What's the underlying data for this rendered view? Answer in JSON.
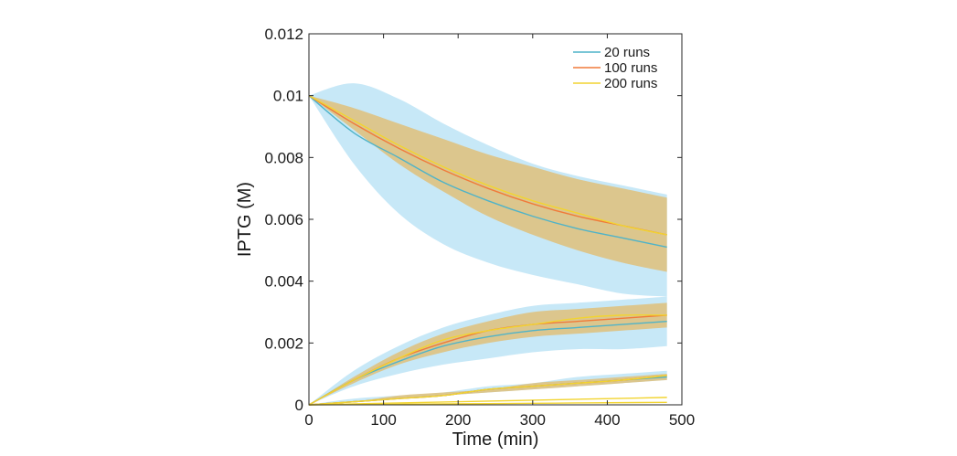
{
  "chart_data": {
    "type": "line",
    "title": "",
    "xlabel": "Time (min)",
    "ylabel": "IPTG (M)",
    "xlim": [
      0,
      500
    ],
    "ylim": [
      0,
      0.012
    ],
    "xticks": [
      0,
      100,
      200,
      300,
      400,
      500
    ],
    "yticks": [
      0,
      0.002,
      0.004,
      0.006,
      0.008,
      0.01,
      0.012
    ],
    "xtick_labels": [
      "0",
      "100",
      "200",
      "300",
      "400",
      "500"
    ],
    "ytick_labels": [
      "0",
      "0.002",
      "0.004",
      "0.006",
      "0.008",
      "0.01",
      "0.012"
    ],
    "grid": false,
    "legend_position": "top-right",
    "x": [
      0,
      60,
      120,
      180,
      240,
      300,
      360,
      420,
      480
    ],
    "series": [
      {
        "name": "20 runs",
        "color": "#4fb3c8",
        "band_color": "#b9e2f5",
        "groups": [
          {
            "mean": [
              0.01,
              0.0088,
              0.008,
              0.0072,
              0.0066,
              0.0061,
              0.0057,
              0.0054,
              0.0051
            ],
            "lower": [
              0.01,
              0.0078,
              0.0062,
              0.0052,
              0.0046,
              0.0042,
              0.0039,
              0.0036,
              0.0035
            ],
            "upper": [
              0.01,
              0.0104,
              0.0099,
              0.0091,
              0.0084,
              0.0078,
              0.0074,
              0.0071,
              0.0068
            ]
          },
          {
            "mean": [
              0,
              0.0008,
              0.0014,
              0.0019,
              0.0022,
              0.0024,
              0.0025,
              0.0026,
              0.0027
            ],
            "lower": [
              0,
              0.0006,
              0.001,
              0.0013,
              0.0015,
              0.0017,
              0.0018,
              0.0018,
              0.0019
            ],
            "upper": [
              0,
              0.0011,
              0.0019,
              0.0025,
              0.0029,
              0.0032,
              0.0033,
              0.0034,
              0.0035
            ]
          },
          {
            "mean": [
              0,
              0.0001,
              0.0002,
              0.0003,
              0.0005,
              0.0006,
              0.0007,
              0.0008,
              0.0009
            ],
            "lower": [
              0,
              0.0001,
              0.0002,
              0.0003,
              0.0004,
              0.0005,
              0.0006,
              0.0007,
              0.0008
            ],
            "upper": [
              0,
              0.0002,
              0.0003,
              0.0004,
              0.0006,
              0.0007,
              0.0009,
              0.001,
              0.0011
            ]
          }
        ]
      },
      {
        "name": "100 runs",
        "color": "#f07a3a",
        "band_color": "#dfc07a",
        "groups": [
          {
            "mean": [
              0.01,
              0.0091,
              0.0083,
              0.0076,
              0.007,
              0.0065,
              0.0061,
              0.0058,
              0.0055
            ],
            "lower": [
              0.01,
              0.0089,
              0.0078,
              0.0069,
              0.0061,
              0.0055,
              0.005,
              0.0046,
              0.0043
            ],
            "upper": [
              0.01,
              0.0096,
              0.0091,
              0.0086,
              0.0081,
              0.0077,
              0.0073,
              0.007,
              0.0067
            ]
          },
          {
            "mean": [
              0,
              0.0008,
              0.0015,
              0.002,
              0.0024,
              0.0026,
              0.0027,
              0.0028,
              0.0029
            ],
            "lower": [
              0,
              0.0007,
              0.0013,
              0.0017,
              0.002,
              0.0022,
              0.0023,
              0.0024,
              0.0025
            ],
            "upper": [
              0,
              0.0009,
              0.0017,
              0.0023,
              0.0027,
              0.003,
              0.0031,
              0.0032,
              0.0033
            ]
          },
          {
            "mean": [
              0,
              0.0001,
              0.0002,
              0.0003,
              0.0005,
              0.0006,
              0.0007,
              0.0008,
              0.00095
            ],
            "lower": [
              0,
              0.0001,
              0.0002,
              0.0003,
              0.0004,
              0.0005,
              0.0006,
              0.0007,
              0.0008
            ],
            "upper": [
              0,
              0.0001,
              0.0003,
              0.0004,
              0.0005,
              0.0007,
              0.0008,
              0.0009,
              0.001
            ]
          }
        ]
      },
      {
        "name": "200 runs",
        "color": "#f2d430",
        "band_color": "#dfc07a",
        "groups": [
          {
            "mean": [
              0.01,
              0.0092,
              0.0084,
              0.0077,
              0.0071,
              0.0066,
              0.0062,
              0.0058,
              0.0055
            ]
          },
          {
            "mean": [
              0,
              0.0008,
              0.0015,
              0.0021,
              0.0024,
              0.0026,
              0.0028,
              0.0029,
              0.0029
            ]
          },
          {
            "mean": [
              0,
              0.0001,
              0.0002,
              0.0003,
              0.0005,
              0.0006,
              0.0007,
              0.0008,
              0.00095
            ]
          },
          {
            "mean": [
              0,
              3e-05,
              6e-05,
              9e-05,
              0.00012,
              0.00015,
              0.00018,
              0.00021,
              0.00024
            ]
          },
          {
            "mean": [
              0,
              1e-05,
              2e-05,
              3e-05,
              4e-05,
              5e-05,
              6e-05,
              7e-05,
              8e-05
            ]
          }
        ]
      }
    ]
  }
}
